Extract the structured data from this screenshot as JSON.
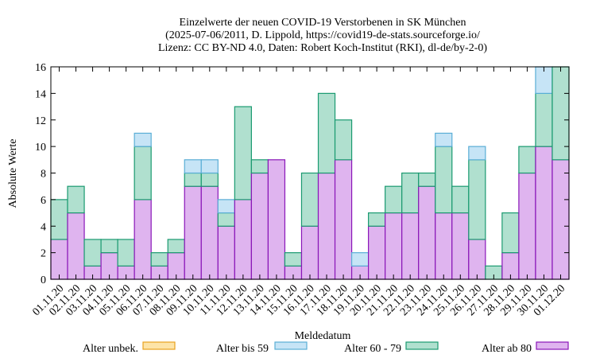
{
  "chart_data": {
    "type": "bar",
    "stacked": true,
    "title": [
      "Einzelwerte der neuen COVID-19 Verstorbenen in SK München",
      "(2025-07-06/2011, D. Lippold, https://covid19-de-stats.sourceforge.io/",
      "Lizenz: CC BY-ND 4.0, Daten: Robert Koch-Institut (RKI), dl-de/by-2-0)"
    ],
    "xlabel": "Meldedatum",
    "ylabel": "Absolute Werte",
    "ylim": [
      0,
      16
    ],
    "yticks": [
      0,
      2,
      4,
      6,
      8,
      10,
      12,
      14,
      16
    ],
    "categories": [
      "01.11.20",
      "02.11.20",
      "03.11.20",
      "04.11.20",
      "05.11.20",
      "06.11.20",
      "07.11.20",
      "08.11.20",
      "09.11.20",
      "10.11.20",
      "11.11.20",
      "12.11.20",
      "13.11.20",
      "14.11.20",
      "15.11.20",
      "16.11.20",
      "17.11.20",
      "18.11.20",
      "19.11.20",
      "20.11.20",
      "21.11.20",
      "22.11.20",
      "23.11.20",
      "24.11.20",
      "25.11.20",
      "26.11.20",
      "27.11.20",
      "28.11.20",
      "29.11.20",
      "30.11.20",
      "01.12.20"
    ],
    "series": [
      {
        "name": "Alter unbek.",
        "fill": "#fde4a8",
        "stroke": "#e8a21e",
        "values": [
          0,
          0,
          0,
          0,
          0,
          0,
          0,
          0,
          0,
          0,
          0,
          0,
          0,
          0,
          0,
          0,
          0,
          0,
          0,
          0,
          0,
          0,
          0,
          0,
          0,
          0,
          0,
          0,
          0,
          0,
          0
        ]
      },
      {
        "name": "Alter bis 59",
        "fill": "#c6e4f6",
        "stroke": "#5aaed6",
        "values": [
          0,
          0,
          0,
          0,
          0,
          1,
          0,
          0,
          1,
          1,
          1,
          0,
          0,
          0,
          0,
          0,
          0,
          0,
          1,
          0,
          0,
          0,
          0,
          1,
          0,
          1,
          0,
          0,
          0,
          2,
          0
        ]
      },
      {
        "name": "Alter 60 - 79",
        "fill": "#b0e0cf",
        "stroke": "#1a9a70",
        "values": [
          3,
          2,
          2,
          1,
          2,
          4,
          1,
          1,
          1,
          1,
          1,
          7,
          1,
          0,
          1,
          4,
          6,
          3,
          0,
          1,
          2,
          3,
          1,
          5,
          2,
          6,
          1,
          3,
          2,
          4,
          7
        ]
      },
      {
        "name": "Alter ab 80",
        "fill": "#dfb4ef",
        "stroke": "#8a16b8",
        "values": [
          3,
          5,
          1,
          2,
          1,
          6,
          1,
          2,
          7,
          7,
          4,
          6,
          8,
          9,
          1,
          4,
          8,
          9,
          1,
          4,
          5,
          5,
          7,
          5,
          5,
          3,
          0,
          2,
          8,
          10,
          9
        ]
      }
    ],
    "legend_position": "bottom"
  }
}
